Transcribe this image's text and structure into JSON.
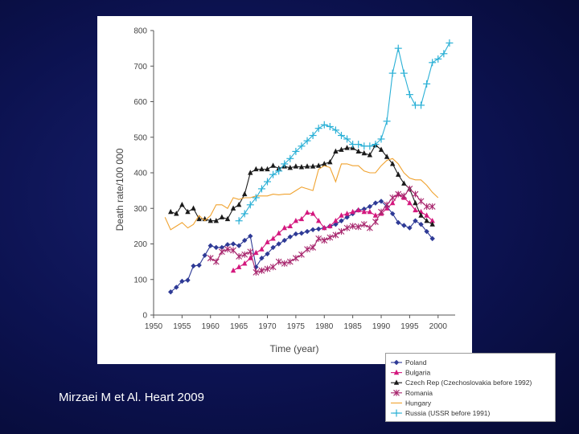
{
  "citation": "Mirzaei M et Al. Heart 2009",
  "chart_data": {
    "type": "line",
    "title": "",
    "xlabel": "Time (year)",
    "ylabel": "Death rate/100 000",
    "xlim": [
      1950,
      2003
    ],
    "ylim": [
      0,
      800
    ],
    "xticks": [
      1950,
      1955,
      1960,
      1965,
      1970,
      1975,
      1980,
      1985,
      1990,
      1995,
      2000
    ],
    "yticks": [
      0,
      100,
      200,
      300,
      400,
      500,
      600,
      700,
      800
    ],
    "grid": false,
    "legend_position": "bottom-right outside plot",
    "series": [
      {
        "name": "Poland",
        "color": "#2e3a96",
        "marker": "diamond",
        "x": [
          1953,
          1954,
          1955,
          1956,
          1957,
          1958,
          1959,
          1960,
          1961,
          1962,
          1963,
          1964,
          1965,
          1966,
          1967,
          1968,
          1969,
          1970,
          1971,
          1972,
          1973,
          1974,
          1975,
          1976,
          1977,
          1978,
          1979,
          1980,
          1981,
          1982,
          1983,
          1984,
          1985,
          1986,
          1987,
          1988,
          1989,
          1990,
          1991,
          1992,
          1993,
          1994,
          1995,
          1996,
          1997,
          1998,
          1999
        ],
        "y": [
          65,
          78,
          95,
          98,
          138,
          140,
          168,
          195,
          190,
          190,
          198,
          200,
          195,
          210,
          222,
          135,
          160,
          172,
          190,
          200,
          210,
          220,
          228,
          230,
          235,
          240,
          242,
          245,
          250,
          255,
          265,
          275,
          285,
          295,
          298,
          305,
          315,
          320,
          305,
          285,
          260,
          252,
          245,
          265,
          255,
          235,
          215
        ]
      },
      {
        "name": "Bulgaria",
        "color": "#d4187e",
        "marker": "triangle",
        "x": [
          1964,
          1965,
          1966,
          1967,
          1968,
          1969,
          1970,
          1971,
          1972,
          1973,
          1974,
          1975,
          1976,
          1977,
          1978,
          1979,
          1980,
          1981,
          1982,
          1983,
          1984,
          1985,
          1986,
          1987,
          1988,
          1989,
          1990,
          1991,
          1992,
          1993,
          1994,
          1995,
          1996,
          1997,
          1998,
          1999
        ],
        "y": [
          125,
          135,
          145,
          160,
          175,
          185,
          205,
          215,
          230,
          245,
          250,
          265,
          270,
          288,
          285,
          265,
          245,
          250,
          265,
          280,
          285,
          290,
          295,
          290,
          290,
          280,
          285,
          300,
          315,
          340,
          330,
          315,
          295,
          290,
          280,
          265
        ]
      },
      {
        "name": "Czech Rep (Czechoslovakia before 1992)",
        "color": "#1a1a1a",
        "marker": "triangle",
        "x": [
          1953,
          1954,
          1955,
          1956,
          1957,
          1958,
          1959,
          1960,
          1961,
          1962,
          1963,
          1964,
          1965,
          1966,
          1967,
          1968,
          1969,
          1970,
          1971,
          1972,
          1973,
          1974,
          1975,
          1976,
          1977,
          1978,
          1979,
          1980,
          1981,
          1982,
          1983,
          1984,
          1985,
          1986,
          1987,
          1988,
          1989,
          1990,
          1991,
          1992,
          1993,
          1994,
          1995,
          1996,
          1997,
          1998,
          1999
        ],
        "y": [
          290,
          285,
          310,
          290,
          300,
          270,
          270,
          265,
          265,
          275,
          270,
          300,
          310,
          340,
          400,
          410,
          410,
          410,
          420,
          412,
          418,
          414,
          418,
          416,
          418,
          418,
          420,
          425,
          430,
          460,
          465,
          470,
          470,
          460,
          455,
          450,
          478,
          465,
          445,
          425,
          395,
          370,
          355,
          315,
          280,
          265,
          255
        ]
      },
      {
        "name": "Romania",
        "color": "#a8276e",
        "marker": "asterisk",
        "x": [
          1960,
          1961,
          1962,
          1963,
          1964,
          1965,
          1966,
          1967,
          1968,
          1969,
          1970,
          1971,
          1972,
          1973,
          1974,
          1975,
          1976,
          1977,
          1978,
          1979,
          1980,
          1981,
          1982,
          1983,
          1984,
          1985,
          1986,
          1987,
          1988,
          1989,
          1990,
          1991,
          1992,
          1993,
          1994,
          1995,
          1996,
          1997,
          1998,
          1999
        ],
        "y": [
          160,
          150,
          178,
          185,
          182,
          165,
          170,
          178,
          120,
          125,
          130,
          135,
          150,
          145,
          150,
          160,
          170,
          185,
          190,
          215,
          210,
          218,
          225,
          235,
          245,
          250,
          248,
          255,
          245,
          262,
          290,
          310,
          330,
          340,
          335,
          355,
          340,
          320,
          305,
          305
        ]
      },
      {
        "name": "Hungary",
        "color": "#f0a22e",
        "marker": "none",
        "x": [
          1952,
          1953,
          1954,
          1955,
          1956,
          1957,
          1958,
          1959,
          1960,
          1961,
          1962,
          1963,
          1964,
          1965,
          1966,
          1967,
          1968,
          1969,
          1970,
          1971,
          1972,
          1973,
          1974,
          1975,
          1976,
          1977,
          1978,
          1979,
          1980,
          1981,
          1982,
          1983,
          1984,
          1985,
          1986,
          1987,
          1988,
          1989,
          1990,
          1991,
          1992,
          1993,
          1994,
          1995,
          1996,
          1997,
          1998,
          1999,
          2000
        ],
        "y": [
          275,
          240,
          250,
          260,
          245,
          255,
          280,
          265,
          280,
          310,
          310,
          300,
          330,
          325,
          330,
          330,
          335,
          335,
          335,
          340,
          338,
          340,
          340,
          350,
          360,
          355,
          350,
          410,
          420,
          415,
          375,
          425,
          425,
          420,
          420,
          405,
          400,
          400,
          420,
          435,
          440,
          425,
          400,
          385,
          380,
          380,
          365,
          345,
          330
        ]
      },
      {
        "name": "Russia (USSR before 1991)",
        "color": "#2ab0d6",
        "marker": "plus",
        "x": [
          1965,
          1966,
          1967,
          1968,
          1969,
          1970,
          1971,
          1972,
          1973,
          1974,
          1975,
          1976,
          1977,
          1978,
          1979,
          1980,
          1981,
          1982,
          1983,
          1984,
          1985,
          1986,
          1987,
          1988,
          1989,
          1990,
          1991,
          1992,
          1993,
          1994,
          1995,
          1996,
          1997,
          1998,
          1999,
          2000,
          2001,
          2002
        ],
        "y": [
          265,
          285,
          310,
          330,
          355,
          375,
          395,
          405,
          425,
          440,
          460,
          475,
          490,
          505,
          525,
          535,
          530,
          520,
          505,
          495,
          480,
          480,
          475,
          475,
          480,
          495,
          545,
          680,
          750,
          680,
          620,
          590,
          590,
          650,
          710,
          720,
          735,
          765
        ]
      }
    ]
  }
}
